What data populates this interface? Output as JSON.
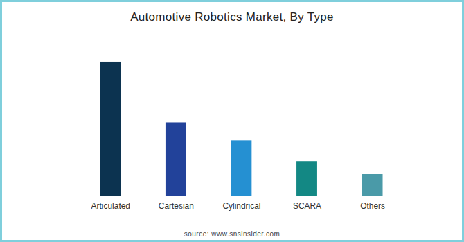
{
  "chart_data": {
    "type": "bar",
    "title": "Automotive Robotics Market, By Type",
    "categories": [
      "Articulated",
      "Cartesian",
      "Cylindrical",
      "SCARA",
      "Others"
    ],
    "values": [
      195,
      106,
      80,
      50,
      32
    ],
    "colors": [
      "#0c3350",
      "#22429a",
      "#2590d2",
      "#138884",
      "#4a9aa8"
    ],
    "ylim": [
      0,
      195
    ],
    "grid": false,
    "tick_labels": "x",
    "source": "source: www.snsinsider.com"
  }
}
